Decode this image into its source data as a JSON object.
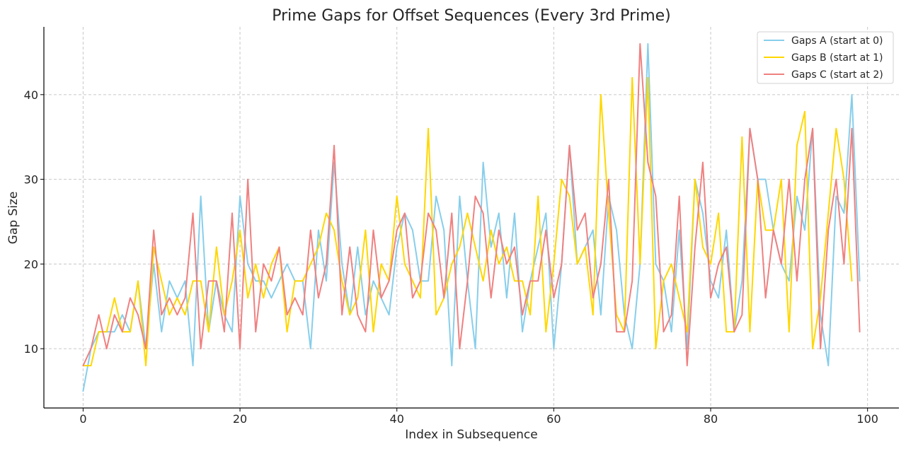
{
  "chart_data": {
    "type": "line",
    "title": "Prime Gaps for Offset Sequences (Every 3rd Prime)",
    "xlabel": "Index in Subsequence",
    "ylabel": "Gap Size",
    "xlim": [
      -5,
      104
    ],
    "ylim": [
      3,
      48
    ],
    "xticks": [
      0,
      20,
      40,
      60,
      80,
      100
    ],
    "yticks": [
      10,
      20,
      30,
      40
    ],
    "grid": true,
    "legend_position": "top-right",
    "series": [
      {
        "name": "Gaps A (start at 0)",
        "color": "#87ceeb",
        "values": [
          5,
          10,
          12,
          12,
          12,
          14,
          12,
          18,
          10,
          20,
          12,
          18,
          16,
          18,
          8,
          28,
          12,
          18,
          14,
          12,
          28,
          20,
          18,
          18,
          16,
          18,
          20,
          18,
          18,
          10,
          24,
          18,
          32,
          20,
          14,
          22,
          14,
          18,
          16,
          14,
          22,
          26,
          24,
          18,
          18,
          28,
          24,
          8,
          28,
          18,
          10,
          32,
          22,
          26,
          16,
          26,
          12,
          18,
          22,
          26,
          10,
          20,
          34,
          20,
          22,
          24,
          14,
          28,
          24,
          14,
          10,
          20,
          46,
          20,
          18,
          12,
          24,
          10,
          30,
          26,
          18,
          16,
          24,
          12,
          18,
          36,
          30,
          30,
          24,
          20,
          18,
          28,
          24,
          36,
          14,
          8,
          28,
          26,
          40,
          18
        ]
      },
      {
        "name": "Gaps B (start at 1)",
        "color": "#ffd700",
        "values": [
          8,
          8,
          12,
          12,
          16,
          12,
          12,
          18,
          8,
          22,
          18,
          14,
          16,
          14,
          18,
          18,
          12,
          22,
          14,
          18,
          24,
          16,
          20,
          16,
          20,
          22,
          12,
          18,
          18,
          20,
          22,
          26,
          24,
          18,
          14,
          16,
          24,
          12,
          20,
          18,
          28,
          20,
          18,
          16,
          36,
          14,
          16,
          20,
          22,
          26,
          22,
          18,
          24,
          20,
          22,
          18,
          18,
          14,
          28,
          12,
          20,
          30,
          28,
          20,
          22,
          14,
          40,
          26,
          14,
          12,
          42,
          20,
          42,
          10,
          18,
          20,
          16,
          12,
          30,
          22,
          20,
          26,
          12,
          12,
          35,
          12,
          30,
          24,
          24,
          30,
          12,
          34,
          38,
          10,
          16,
          26,
          36,
          30,
          18
        ]
      },
      {
        "name": "Gaps C (start at 2)",
        "color": "#f08080",
        "values": [
          8,
          10,
          14,
          10,
          14,
          12,
          16,
          14,
          10,
          24,
          14,
          16,
          14,
          16,
          26,
          10,
          18,
          18,
          12,
          26,
          10,
          30,
          12,
          20,
          18,
          22,
          14,
          16,
          14,
          24,
          16,
          20,
          34,
          14,
          22,
          14,
          12,
          24,
          16,
          18,
          24,
          26,
          16,
          18,
          26,
          24,
          16,
          26,
          10,
          18,
          28,
          26,
          16,
          24,
          20,
          22,
          14,
          18,
          18,
          24,
          16,
          20,
          34,
          24,
          26,
          16,
          20,
          30,
          12,
          12,
          18,
          46,
          32,
          28,
          12,
          14,
          28,
          8,
          22,
          32,
          16,
          20,
          22,
          12,
          14,
          36,
          30,
          16,
          24,
          20,
          30,
          18,
          30,
          36,
          10,
          24,
          30,
          20,
          36,
          12
        ]
      }
    ]
  }
}
